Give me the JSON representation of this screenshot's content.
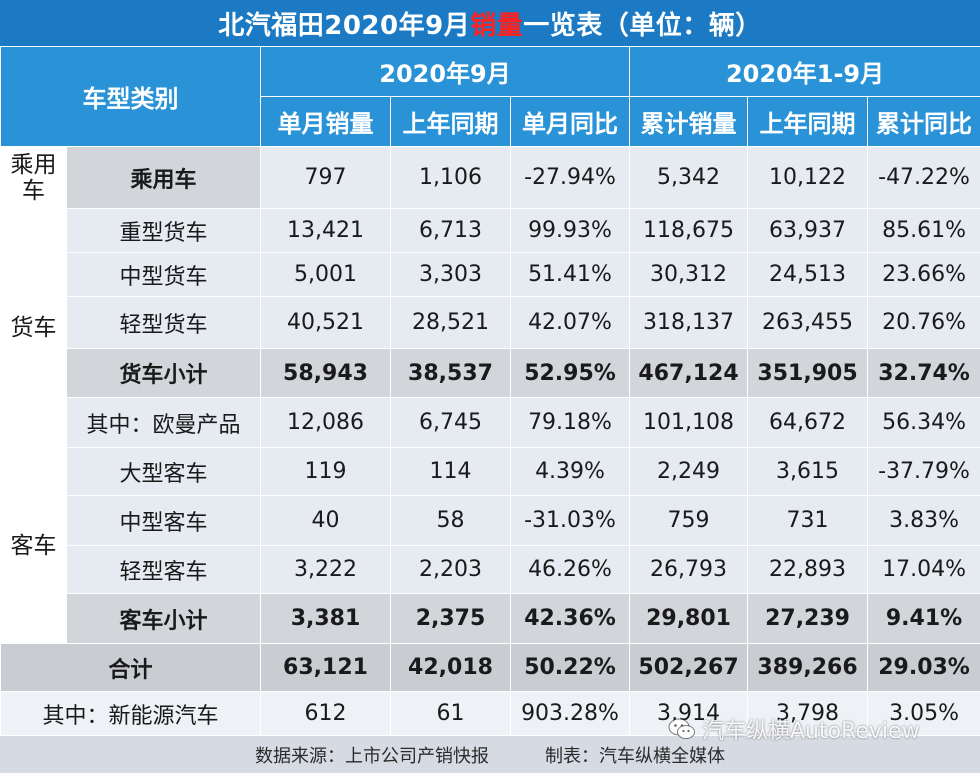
{
  "title": {
    "prefix": "北汽福田2020年9月",
    "highlight": "销量",
    "suffix": "一览表（单位：辆）"
  },
  "colors": {
    "header_blue": "#2a93d8",
    "title_blue": "#1b7ac3",
    "negative_red": "#e0161b"
  },
  "header": {
    "category": "车型类别",
    "group_month": "2020年9月",
    "group_ytd": "2020年1-9月",
    "columns": [
      "单月销量",
      "上年同期",
      "单月同比",
      "累计销量",
      "上年同期",
      "累计同比"
    ]
  },
  "groups": {
    "passenger": "乘用车",
    "truck": "货车",
    "bus": "客车"
  },
  "rows": {
    "passenger": {
      "name": "乘用车",
      "cells": [
        "797",
        "1,106",
        "-27.94%",
        "5,342",
        "10,122",
        "-47.22%"
      ]
    },
    "heavy_truck": {
      "name": "重型货车",
      "cells": [
        "13,421",
        "6,713",
        "99.93%",
        "118,675",
        "63,937",
        "85.61%"
      ]
    },
    "medium_truck": {
      "name": "中型货车",
      "cells": [
        "5,001",
        "3,303",
        "51.41%",
        "30,312",
        "24,513",
        "23.66%"
      ]
    },
    "light_truck": {
      "name": "轻型货车",
      "cells": [
        "40,521",
        "28,521",
        "42.07%",
        "318,137",
        "263,455",
        "20.76%"
      ]
    },
    "truck_subtotal": {
      "name": "货车小计",
      "cells": [
        "58,943",
        "38,537",
        "52.95%",
        "467,124",
        "351,905",
        "32.74%"
      ]
    },
    "auman": {
      "name": "其中：欧曼产品",
      "cells": [
        "12,086",
        "6,745",
        "79.18%",
        "101,108",
        "64,672",
        "56.34%"
      ]
    },
    "large_bus": {
      "name": "大型客车",
      "cells": [
        "119",
        "114",
        "4.39%",
        "2,249",
        "3,615",
        "-37.79%"
      ]
    },
    "medium_bus": {
      "name": "中型客车",
      "cells": [
        "40",
        "58",
        "-31.03%",
        "759",
        "731",
        "3.83%"
      ]
    },
    "light_bus": {
      "name": "轻型客车",
      "cells": [
        "3,222",
        "2,203",
        "46.26%",
        "26,793",
        "22,893",
        "17.04%"
      ]
    },
    "bus_subtotal": {
      "name": "客车小计",
      "cells": [
        "3,381",
        "2,375",
        "42.36%",
        "29,801",
        "27,239",
        "9.41%"
      ]
    },
    "total": {
      "name": "合计",
      "cells": [
        "63,121",
        "42,018",
        "50.22%",
        "502,267",
        "389,266",
        "29.03%"
      ]
    },
    "nev": {
      "name": "其中：新能源汽车",
      "cells": [
        "612",
        "61",
        "903.28%",
        "3,914",
        "3,798",
        "3.05%"
      ]
    }
  },
  "footer": {
    "source": "数据来源：上市公司产销快报",
    "maker": "制表：汽车纵横全媒体"
  },
  "watermark": {
    "icon": "wechat-icon",
    "text": "汽车纵横AutoReview"
  }
}
